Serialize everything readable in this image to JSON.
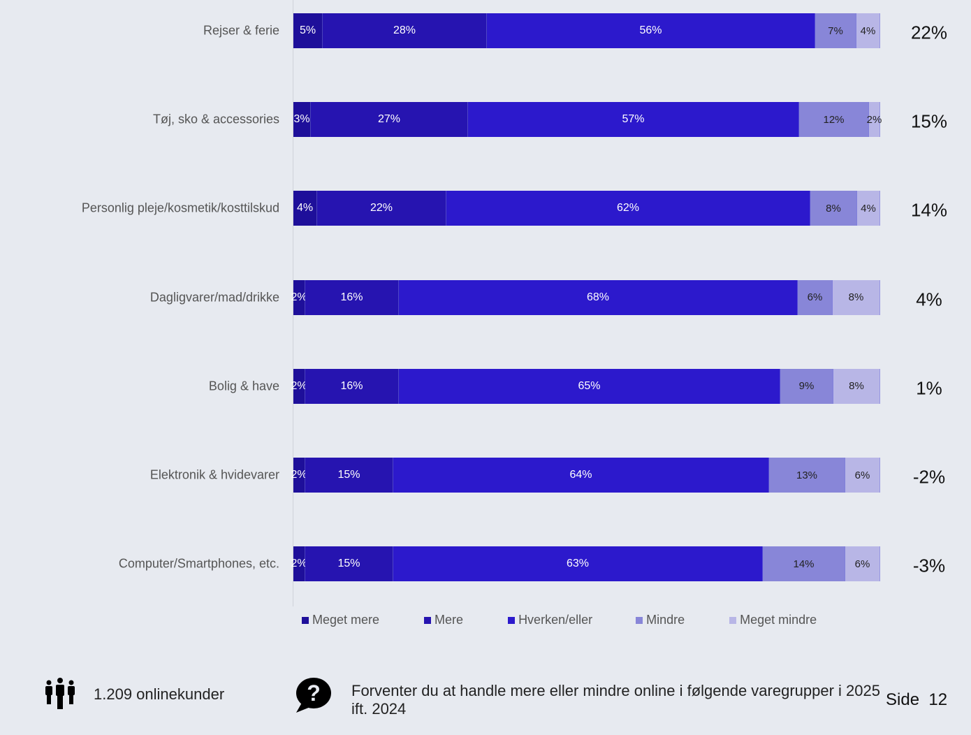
{
  "chart_data": {
    "type": "bar",
    "orientation": "horizontal",
    "stacked": true,
    "categories": [
      "Rejser & ferie",
      "Tøj, sko & accessories",
      "Personlig pleje/kosmetik/kosttilskud",
      "Dagligvarer/mad/drikke",
      "Bolig & have",
      "Elektronik & hvidevarer",
      "Computer/Smartphones, etc."
    ],
    "series": [
      {
        "name": "Meget mere",
        "color": "#1e0f9a",
        "values": [
          5,
          3,
          4,
          2,
          2,
          2,
          2
        ],
        "labels": [
          "5%",
          "3%",
          "4%",
          "2%",
          "2%",
          "2%",
          "2%"
        ]
      },
      {
        "name": "Mere",
        "color": "#2614b0",
        "values": [
          28,
          27,
          22,
          16,
          16,
          15,
          15
        ],
        "labels": [
          "28%",
          "27%",
          "22%",
          "16%",
          "16%",
          "15%",
          "15%"
        ]
      },
      {
        "name": "Hverken/eller",
        "color": "#2c19cc",
        "values": [
          56,
          57,
          62,
          68,
          65,
          64,
          63
        ],
        "labels": [
          "56%",
          "57%",
          "62%",
          "68%",
          "65%",
          "64%",
          "63%"
        ]
      },
      {
        "name": "Mindre",
        "color": "#8886d8",
        "values": [
          7,
          12,
          8,
          6,
          9,
          13,
          14
        ],
        "labels": [
          "7%",
          "12%",
          "8%",
          "6%",
          "9%",
          "13%",
          "14%"
        ]
      },
      {
        "name": "Meget mindre",
        "color": "#b8b6e6",
        "values": [
          4,
          2,
          4,
          8,
          8,
          6,
          6
        ],
        "labels": [
          "4%",
          "2%",
          "4%",
          "8%",
          "8%",
          "6%",
          "6%"
        ]
      }
    ],
    "net": [
      "22%",
      "15%",
      "14%",
      "4%",
      "1%",
      "-2%",
      "-3%"
    ],
    "xlim": [
      0,
      100
    ],
    "legend_position": "bottom"
  },
  "footer": {
    "respondents": "1.209 onlinekunder",
    "question": "Forventer du at handle mere eller mindre online i følgende varegrupper i 2025 ift. 2024",
    "page_label": "Side",
    "page_number": "12",
    "people_icon": "people-icon",
    "question_icon": "question-bubble-icon"
  }
}
